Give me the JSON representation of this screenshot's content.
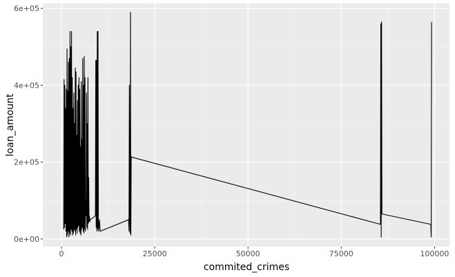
{
  "chart_data": {
    "type": "line",
    "xlabel": "commited_crimes",
    "ylabel": "loan_amount",
    "xlim": [
      -5000,
      104000
    ],
    "ylim": [
      -20000,
      613000
    ],
    "x_ticks": [
      0,
      25000,
      50000,
      75000,
      100000
    ],
    "x_tick_labels": [
      "0",
      "25000",
      "50000",
      "75000",
      "100000"
    ],
    "y_ticks": [
      0,
      200000,
      400000,
      600000
    ],
    "y_tick_labels": [
      "0e+00",
      "2e+05",
      "4e+05",
      "6e+05"
    ],
    "grid": true,
    "series": [
      {
        "x": [
          600,
          700,
          800,
          900,
          1000,
          1100,
          1200,
          1300,
          1400,
          1500,
          1600,
          1700,
          1800,
          1900,
          2000,
          2100,
          2200,
          2300,
          2400,
          2500,
          2600,
          2700,
          2800,
          2900,
          3000,
          3100,
          3200,
          3300,
          3400,
          3500,
          3600,
          3700,
          3800,
          3900,
          4000,
          4100,
          4200,
          4300,
          4400,
          4500,
          4600,
          4700,
          4800,
          4900,
          5000,
          5100,
          5200,
          5300,
          5400,
          5500,
          5600,
          5700,
          5800,
          5900,
          6000,
          6100,
          6200,
          6300,
          6400,
          6500,
          6600,
          6700,
          6800,
          6900,
          7000,
          7100,
          7200,
          7300,
          7400,
          7500,
          7600,
          7700,
          9100,
          9200,
          9300,
          9400,
          9500,
          9600,
          9700,
          9800,
          9900,
          10000,
          10100,
          10200,
          10300,
          10400,
          18000,
          18100,
          18200,
          18300,
          18400,
          18500,
          18600,
          18700,
          18800,
          85500,
          85600,
          85700,
          85800,
          85900,
          99000,
          99100,
          99200
        ],
        "y": [
          25000,
          415000,
          30000,
          400000,
          40000,
          340000,
          20000,
          390000,
          5000,
          495000,
          10000,
          385000,
          20000,
          460000,
          5000,
          470000,
          15000,
          540000,
          10000,
          500000,
          25000,
          540000,
          20000,
          420000,
          10000,
          340000,
          15000,
          380000,
          25000,
          300000,
          20000,
          445000,
          10000,
          435000,
          25000,
          270000,
          15000,
          360000,
          30000,
          400000,
          35000,
          420000,
          20000,
          390000,
          15000,
          240000,
          10000,
          410000,
          25000,
          260000,
          30000,
          470000,
          20000,
          400000,
          15000,
          475000,
          25000,
          420000,
          20000,
          100000,
          60000,
          380000,
          30000,
          300000,
          25000,
          420000,
          40000,
          160000,
          45000,
          60000,
          45000,
          50000,
          60000,
          465000,
          30000,
          465000,
          20000,
          540000,
          25000,
          540000,
          30000,
          20000,
          40000,
          50000,
          30000,
          20000,
          50000,
          20000,
          400000,
          50000,
          15000,
          590000,
          10000,
          215000,
          213000,
          38000,
          560000,
          5000,
          565000,
          65000,
          38000,
          5000,
          565000
        ]
      }
    ]
  }
}
